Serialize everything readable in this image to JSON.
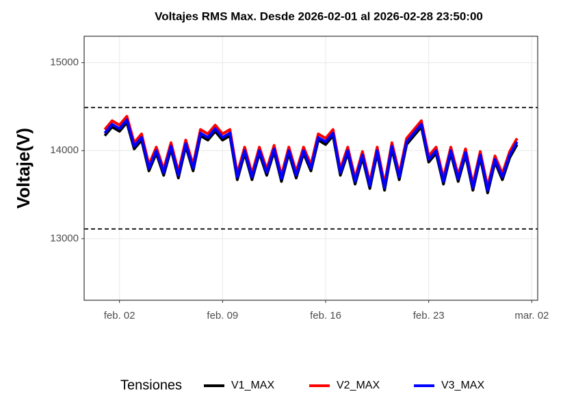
{
  "chart_data": {
    "type": "line",
    "title": "Voltajes RMS Max. Desde  2026-02-01  al  2026-02-28 23:50:00",
    "y_label": "Voltaje(V)",
    "legend_title": "Tensiones",
    "legend_position": "bottom",
    "grid": true,
    "x": [
      1,
      1.5,
      2,
      2.5,
      3,
      3.5,
      4,
      4.5,
      5,
      5.5,
      6,
      6.5,
      7,
      7.5,
      8,
      8.5,
      9,
      9.5,
      10,
      10.5,
      11,
      11.5,
      12,
      12.5,
      13,
      13.5,
      14,
      14.5,
      15,
      15.5,
      16,
      16.5,
      17,
      17.5,
      18,
      18.5,
      19,
      19.5,
      20,
      20.5,
      21,
      21.5,
      22,
      22.5,
      23,
      23.5,
      24,
      24.5,
      25,
      25.5,
      26,
      26.5,
      27,
      27.5,
      28,
      28.5,
      29
    ],
    "xlim": [
      -0.4,
      30.4
    ],
    "xticks": [
      {
        "value": 2,
        "label": "feb. 02"
      },
      {
        "value": 9,
        "label": "feb. 09"
      },
      {
        "value": 16,
        "label": "feb. 16"
      },
      {
        "value": 23,
        "label": "feb. 23"
      },
      {
        "value": 30,
        "label": "mar. 02"
      }
    ],
    "ylim": [
      12300,
      15300
    ],
    "yticks": [
      13000,
      14000,
      15000
    ],
    "hlines": [
      14490,
      13110
    ],
    "series": [
      {
        "name": "V1_MAX",
        "color": "#000000",
        "values": [
          14170,
          14270,
          14220,
          14320,
          14020,
          14120,
          13770,
          13970,
          13720,
          14020,
          13690,
          14050,
          13770,
          14170,
          14120,
          14220,
          14120,
          14170,
          13670,
          13970,
          13670,
          13970,
          13720,
          13990,
          13650,
          13970,
          13690,
          13970,
          13770,
          14120,
          14070,
          14170,
          13720,
          13970,
          13620,
          13920,
          13570,
          13970,
          13550,
          14020,
          13670,
          14070,
          14170,
          14270,
          13870,
          13970,
          13620,
          13970,
          13650,
          13950,
          13550,
          13920,
          13520,
          13870,
          13670,
          13920,
          14070
        ]
      },
      {
        "name": "V2_MAX",
        "color": "#ff0000",
        "values": [
          14240,
          14340,
          14290,
          14390,
          14090,
          14190,
          13840,
          14040,
          13790,
          14090,
          13760,
          14120,
          13840,
          14240,
          14190,
          14290,
          14190,
          14240,
          13740,
          14040,
          13740,
          14040,
          13790,
          14060,
          13720,
          14040,
          13760,
          14040,
          13840,
          14190,
          14140,
          14240,
          13790,
          14040,
          13690,
          13990,
          13640,
          14040,
          13620,
          14090,
          13740,
          14140,
          14240,
          14340,
          13940,
          14040,
          13690,
          14040,
          13720,
          14020,
          13620,
          13990,
          13590,
          13940,
          13740,
          13990,
          14140
        ]
      },
      {
        "name": "V3_MAX",
        "color": "#0000ff",
        "values": [
          14200,
          14300,
          14250,
          14350,
          14050,
          14150,
          13800,
          14000,
          13750,
          14050,
          13720,
          14080,
          13800,
          14200,
          14150,
          14250,
          14150,
          14200,
          13700,
          14000,
          13700,
          14000,
          13750,
          14020,
          13680,
          14000,
          13720,
          14000,
          13800,
          14150,
          14100,
          14200,
          13750,
          14000,
          13650,
          13950,
          13600,
          14000,
          13580,
          14050,
          13700,
          14100,
          14200,
          14300,
          13900,
          14000,
          13650,
          14000,
          13680,
          13980,
          13580,
          13950,
          13550,
          13900,
          13700,
          13950,
          14100
        ]
      }
    ]
  }
}
